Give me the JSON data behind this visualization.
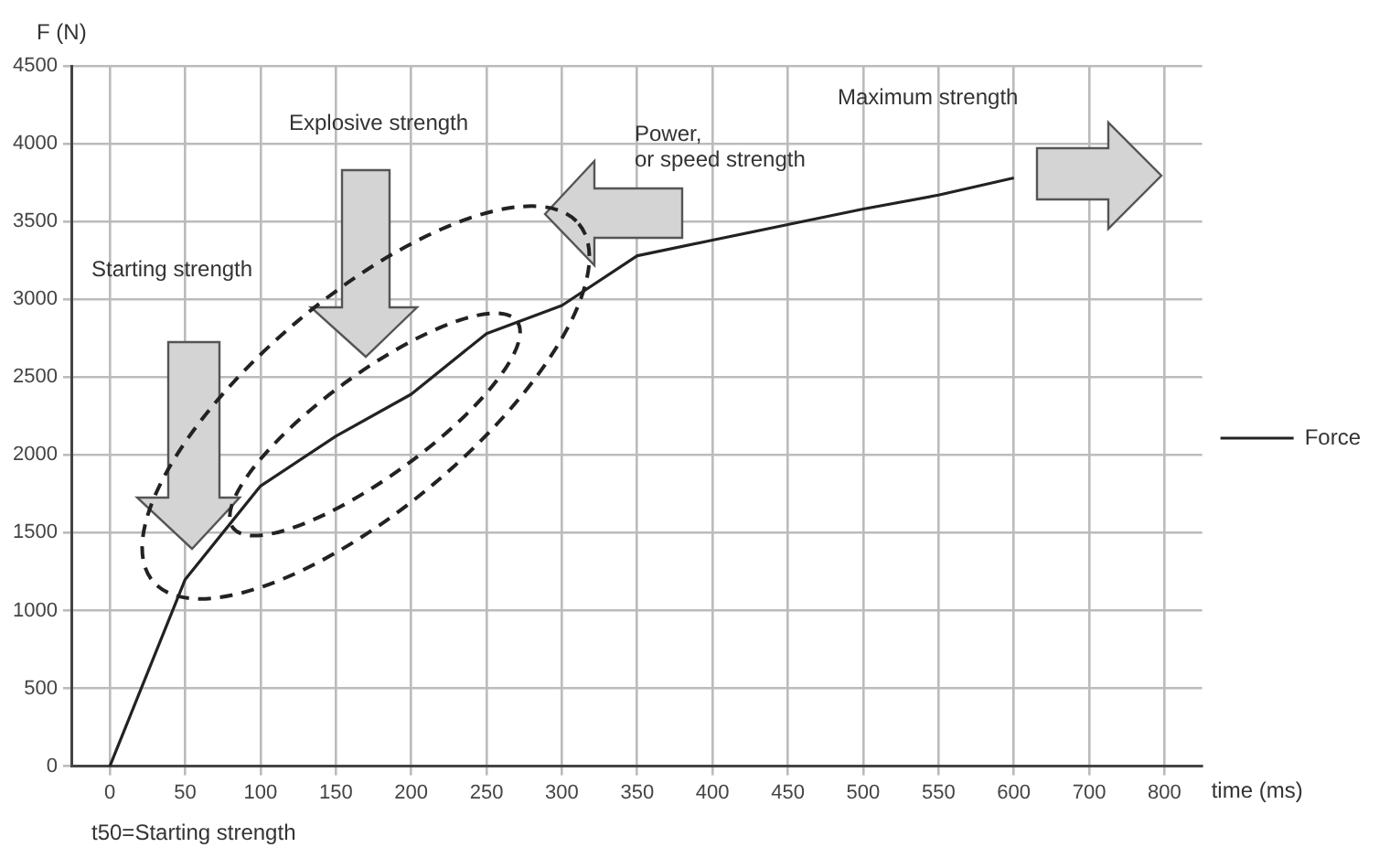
{
  "chart_data": {
    "type": "line",
    "xlabel": "time (ms)",
    "ylabel": "F (N)",
    "categories": [
      "0",
      "50",
      "100",
      "150",
      "200",
      "250",
      "300",
      "350",
      "400",
      "450",
      "500",
      "550",
      "600",
      "700",
      "800"
    ],
    "series": [
      {
        "name": "Force",
        "color": "#222222",
        "values": [
          0,
          1200,
          1800,
          2120,
          2390,
          2780,
          2960,
          3280,
          3380,
          3480,
          3580,
          3670,
          3780,
          null,
          null
        ]
      }
    ],
    "ylim": [
      0,
      4500
    ],
    "yticks": [
      0,
      500,
      1000,
      1500,
      2000,
      2500,
      3000,
      3500,
      4000,
      4500
    ],
    "annotations": [
      "Starting strength",
      "Explosive strength",
      "Power,\nor speed strength",
      "Maximum strength",
      "t50=Starting strength"
    ],
    "grid": true,
    "legend": "right",
    "marker": "none",
    "line_style": "solid"
  }
}
